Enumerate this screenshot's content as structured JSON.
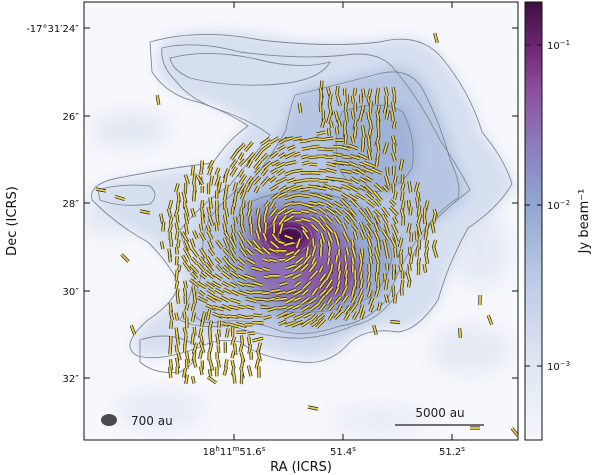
{
  "chart_data": {
    "type": "heatmap",
    "title": "",
    "xlabel": "RA (ICRS)",
    "ylabel": "Dec (ICRS)",
    "colorbar_label": "Jy beam⁻¹",
    "colorbar_scale": "log",
    "colorbar_range": [
      0.0003,
      0.2
    ],
    "colormap": [
      "#f3f5fa",
      "#c9d4ea",
      "#8fa6cf",
      "#7d6fb8",
      "#8a3f97",
      "#5c1a5e",
      "#3d0f40"
    ],
    "x_ticks": [
      {
        "main": "18",
        "sup1": "h",
        "mid": "11",
        "sup2": "m",
        "tail": "51.6",
        "sup3": "s"
      },
      {
        "main": "",
        "sup1": "",
        "mid": "",
        "sup2": "",
        "tail": "51.4",
        "sup3": "s"
      },
      {
        "main": "",
        "sup1": "",
        "mid": "",
        "sup2": "",
        "tail": "51.2",
        "sup3": "s"
      }
    ],
    "y_ticks": [
      "-17°31′24″",
      "26″",
      "28″",
      "30″",
      "32″"
    ],
    "colorbar_ticks": [
      {
        "base": "10",
        "exp": "−1"
      },
      {
        "base": "10",
        "exp": "−2"
      },
      {
        "base": "10",
        "exp": "−3"
      }
    ],
    "annotations": {
      "beam_label": "700 au",
      "scalebar_label": "5000 au"
    },
    "polarization_vectors": "line segments overlaid on dust emission",
    "contours": "grey intensity contours"
  }
}
